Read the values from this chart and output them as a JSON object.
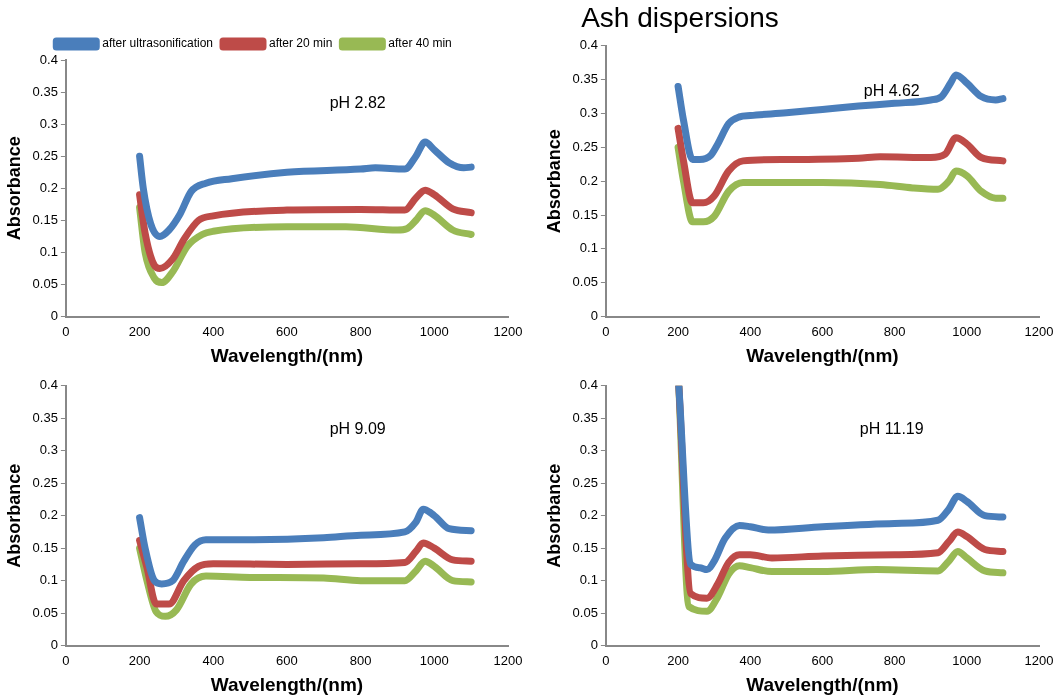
{
  "chart_data": [
    {
      "type": "line",
      "xlabel": "Wavelength/(nm)",
      "ylabel": "Absorbance",
      "annotations": [
        "pH 2.82"
      ],
      "xlim": [
        0,
        1200
      ],
      "xticks": [
        0,
        200,
        400,
        600,
        800,
        1000,
        1200
      ],
      "ylim": [
        0,
        0.4
      ],
      "yticks": [
        0,
        0.05,
        0.1,
        0.15,
        0.2,
        0.25,
        0.3,
        0.35,
        0.4
      ],
      "grid": false,
      "legend": "top",
      "marker": "none",
      "line_style": "solid",
      "series": [
        {
          "name": "after ultrasonification",
          "color": "#4a7ebb",
          "x": [
            200,
            210,
            230,
            255,
            280,
            310,
            340,
            380,
            450,
            600,
            800,
            840,
            920,
            950,
            975,
            1000,
            1040,
            1080,
            1100
          ],
          "values": [
            0.25,
            0.2,
            0.145,
            0.125,
            0.135,
            0.16,
            0.195,
            0.208,
            0.215,
            0.225,
            0.23,
            0.232,
            0.23,
            0.25,
            0.272,
            0.26,
            0.24,
            0.232,
            0.233
          ]
        },
        {
          "name": "after 20 min",
          "color": "#be4b48",
          "x": [
            200,
            215,
            240,
            255,
            290,
            320,
            360,
            400,
            600,
            800,
            920,
            950,
            975,
            1000,
            1050,
            1100
          ],
          "values": [
            0.19,
            0.13,
            0.08,
            0.075,
            0.09,
            0.12,
            0.15,
            0.157,
            0.166,
            0.167,
            0.166,
            0.185,
            0.197,
            0.19,
            0.168,
            0.162
          ]
        },
        {
          "name": "after 40 min",
          "color": "#98b954",
          "x": [
            200,
            215,
            240,
            260,
            290,
            330,
            370,
            400,
            600,
            760,
            900,
            925,
            950,
            975,
            1000,
            1050,
            1100
          ],
          "values": [
            0.17,
            0.1,
            0.06,
            0.053,
            0.07,
            0.11,
            0.128,
            0.133,
            0.14,
            0.14,
            0.135,
            0.137,
            0.15,
            0.165,
            0.158,
            0.135,
            0.128
          ]
        }
      ]
    },
    {
      "type": "line",
      "title": "Ash dispersions",
      "xlabel": "Wavelength/(nm)",
      "ylabel": "Absorbance",
      "annotations": [
        "pH 4.62"
      ],
      "xlim": [
        0,
        1200
      ],
      "xticks": [
        0,
        200,
        400,
        600,
        800,
        1000,
        1200
      ],
      "ylim": [
        0,
        0.4
      ],
      "yticks": [
        0,
        0.05,
        0.1,
        0.15,
        0.2,
        0.25,
        0.3,
        0.35,
        0.4
      ],
      "grid": false,
      "marker": "none",
      "line_style": "solid",
      "series": [
        {
          "color": "#4a7ebb",
          "x": [
            200,
            215,
            240,
            260,
            290,
            310,
            340,
            370,
            400,
            500,
            600,
            700,
            800,
            900,
            930,
            955,
            970,
            1000,
            1040,
            1080,
            1100
          ],
          "values": [
            0.34,
            0.29,
            0.232,
            0.232,
            0.238,
            0.255,
            0.285,
            0.295,
            0.297,
            0.301,
            0.306,
            0.311,
            0.315,
            0.32,
            0.325,
            0.345,
            0.357,
            0.345,
            0.325,
            0.32,
            0.322
          ]
        },
        {
          "color": "#be4b48",
          "x": [
            200,
            215,
            240,
            270,
            300,
            340,
            380,
            500,
            700,
            760,
            900,
            940,
            970,
            1000,
            1040,
            1100
          ],
          "values": [
            0.278,
            0.23,
            0.168,
            0.168,
            0.178,
            0.215,
            0.23,
            0.232,
            0.234,
            0.236,
            0.235,
            0.24,
            0.264,
            0.255,
            0.235,
            0.23
          ]
        },
        {
          "color": "#98b954",
          "x": [
            200,
            215,
            240,
            270,
            300,
            340,
            380,
            600,
            760,
            850,
            920,
            950,
            970,
            1000,
            1040,
            1080,
            1100
          ],
          "values": [
            0.25,
            0.2,
            0.14,
            0.14,
            0.148,
            0.185,
            0.198,
            0.198,
            0.195,
            0.19,
            0.188,
            0.2,
            0.215,
            0.208,
            0.185,
            0.175,
            0.175
          ]
        }
      ]
    },
    {
      "type": "line",
      "xlabel": "Wavelength/(nm)",
      "ylabel": "Absorbance",
      "annotations": [
        "pH 9.09"
      ],
      "xlim": [
        0,
        1200
      ],
      "xticks": [
        0,
        200,
        400,
        600,
        800,
        1000,
        1200
      ],
      "ylim": [
        0,
        0.4
      ],
      "yticks": [
        0,
        0.05,
        0.1,
        0.15,
        0.2,
        0.25,
        0.3,
        0.35,
        0.4
      ],
      "grid": false,
      "marker": "none",
      "line_style": "solid",
      "series": [
        {
          "color": "#4a7ebb",
          "x": [
            200,
            215,
            240,
            260,
            290,
            320,
            350,
            380,
            500,
            700,
            800,
            920,
            950,
            970,
            1000,
            1040,
            1100
          ],
          "values": [
            0.197,
            0.15,
            0.1,
            0.095,
            0.1,
            0.13,
            0.155,
            0.163,
            0.163,
            0.166,
            0.17,
            0.175,
            0.19,
            0.21,
            0.2,
            0.18,
            0.177
          ]
        },
        {
          "color": "#be4b48",
          "x": [
            200,
            220,
            245,
            280,
            320,
            360,
            400,
            600,
            800,
            920,
            950,
            970,
            1000,
            1050,
            1100
          ],
          "values": [
            0.162,
            0.12,
            0.064,
            0.064,
            0.1,
            0.122,
            0.126,
            0.125,
            0.126,
            0.128,
            0.145,
            0.158,
            0.15,
            0.132,
            0.13
          ]
        },
        {
          "color": "#98b954",
          "x": [
            200,
            220,
            245,
            270,
            300,
            340,
            380,
            500,
            700,
            800,
            920,
            950,
            975,
            1000,
            1050,
            1100
          ],
          "values": [
            0.15,
            0.1,
            0.052,
            0.045,
            0.055,
            0.095,
            0.107,
            0.105,
            0.104,
            0.1,
            0.1,
            0.115,
            0.13,
            0.122,
            0.1,
            0.098
          ]
        }
      ]
    },
    {
      "type": "line",
      "xlabel": "Wavelength/(nm)",
      "ylabel": "Absorbance",
      "annotations": [
        "pH 11.19"
      ],
      "xlim": [
        0,
        1200
      ],
      "xticks": [
        0,
        200,
        400,
        600,
        800,
        1000,
        1200
      ],
      "ylim": [
        0,
        0.4
      ],
      "yticks": [
        0,
        0.05,
        0.1,
        0.15,
        0.2,
        0.25,
        0.3,
        0.35,
        0.4
      ],
      "grid": false,
      "marker": "none",
      "line_style": "solid",
      "series": [
        {
          "color": "#4a7ebb",
          "x": [
            202,
            235,
            260,
            280,
            300,
            330,
            370,
            400,
            450,
            600,
            800,
            920,
            950,
            975,
            1000,
            1050,
            1100
          ],
          "values": [
            0.4,
            0.125,
            0.12,
            0.117,
            0.13,
            0.165,
            0.185,
            0.183,
            0.178,
            0.183,
            0.188,
            0.193,
            0.21,
            0.23,
            0.222,
            0.2,
            0.198
          ]
        },
        {
          "color": "#be4b48",
          "x": [
            202,
            235,
            280,
            310,
            340,
            370,
            400,
            460,
            600,
            800,
            920,
            950,
            975,
            1000,
            1050,
            1100
          ],
          "values": [
            0.4,
            0.08,
            0.073,
            0.095,
            0.128,
            0.14,
            0.14,
            0.135,
            0.138,
            0.14,
            0.143,
            0.16,
            0.175,
            0.168,
            0.148,
            0.145
          ]
        },
        {
          "color": "#98b954",
          "x": [
            202,
            230,
            280,
            310,
            340,
            370,
            400,
            460,
            600,
            750,
            920,
            950,
            975,
            1000,
            1050,
            1100
          ],
          "values": [
            0.4,
            0.06,
            0.053,
            0.075,
            0.11,
            0.123,
            0.12,
            0.114,
            0.114,
            0.117,
            0.115,
            0.13,
            0.145,
            0.135,
            0.115,
            0.112
          ]
        }
      ]
    }
  ]
}
